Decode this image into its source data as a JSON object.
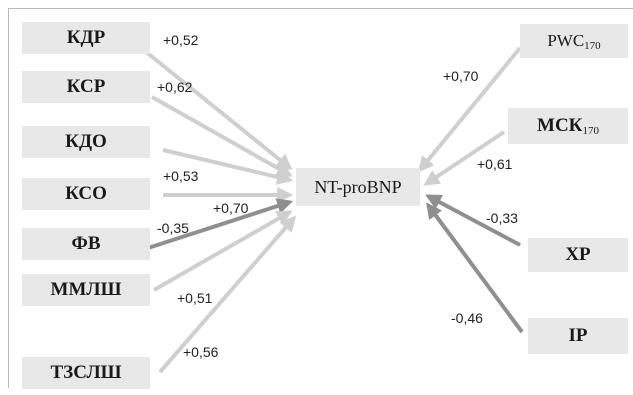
{
  "center": {
    "label": "NT-proBNP"
  },
  "left_nodes": [
    {
      "id": "kdr",
      "label": "КДР",
      "coef": "+0,52",
      "color": "#cfcfcf"
    },
    {
      "id": "ksr",
      "label": "КСР",
      "coef": "+0,62",
      "color": "#cfcfcf"
    },
    {
      "id": "kdo",
      "label": "КДО",
      "coef": "",
      "color": "#cfcfcf"
    },
    {
      "id": "kso",
      "label": "КСО",
      "coef": "+0,53",
      "color": "#cfcfcf"
    },
    {
      "id": "fv",
      "label": "ФВ",
      "coef": "-0,35",
      "color": "#8f8f8f"
    },
    {
      "id": "mmlsh",
      "label": "ММЛШ",
      "coef": "+0,51",
      "color": "#cfcfcf"
    },
    {
      "id": "tzslsh",
      "label": "ТЗСЛШ",
      "coef": "+0,56",
      "color": "#cfcfcf"
    }
  ],
  "extra_coef": "+0,70",
  "right_nodes": [
    {
      "id": "pwc",
      "label": "PWC",
      "sub": "170",
      "coef": "+0,70",
      "color": "#cfcfcf"
    },
    {
      "id": "msk",
      "label": "МСК",
      "sub": "170",
      "coef": "+0,61",
      "color": "#cfcfcf"
    },
    {
      "id": "xr",
      "label": "ХР",
      "coef": "-0,33",
      "color": "#8f8f8f"
    },
    {
      "id": "ir",
      "label": "IP",
      "coef": "-0,46",
      "color": "#8f8f8f"
    }
  ]
}
